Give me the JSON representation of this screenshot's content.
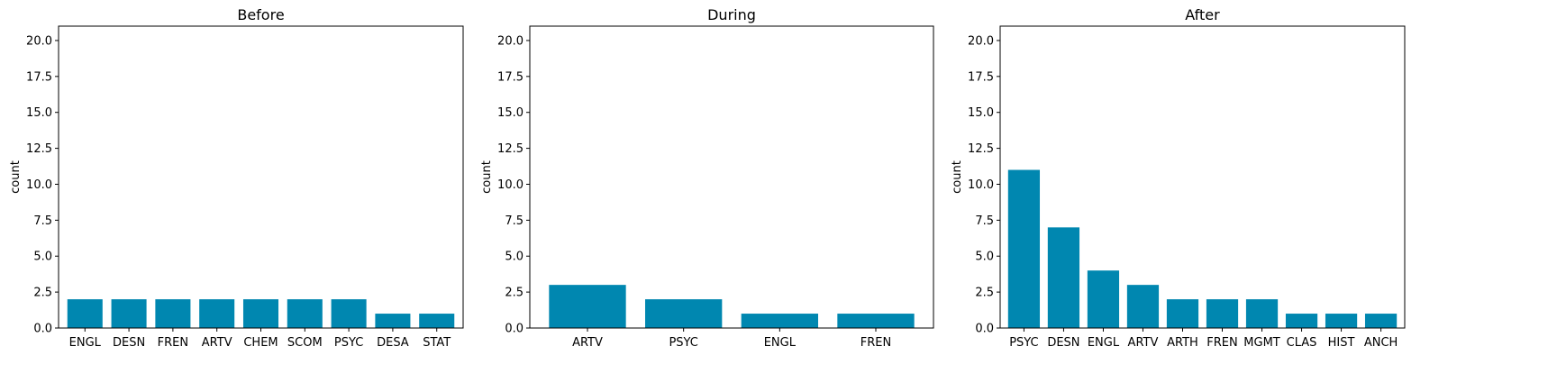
{
  "chart_data": [
    {
      "type": "bar",
      "title": "Before",
      "xlabel": "",
      "ylabel": "count",
      "ylim": [
        0,
        21
      ],
      "yticks": [
        "0.0",
        "2.5",
        "5.0",
        "7.5",
        "10.0",
        "12.5",
        "15.0",
        "17.5",
        "20.0"
      ],
      "categories": [
        "ENGL",
        "DESN",
        "FREN",
        "ARTV",
        "CHEM",
        "SCOM",
        "PSYC",
        "DESA",
        "STAT"
      ],
      "values": [
        2,
        2,
        2,
        2,
        2,
        2,
        2,
        1,
        1
      ],
      "color": "#0087b0",
      "grid": false
    },
    {
      "type": "bar",
      "title": "During",
      "xlabel": "",
      "ylabel": "count",
      "ylim": [
        0,
        21
      ],
      "yticks": [
        "0.0",
        "2.5",
        "5.0",
        "7.5",
        "10.0",
        "12.5",
        "15.0",
        "17.5",
        "20.0"
      ],
      "categories": [
        "ARTV",
        "PSYC",
        "ENGL",
        "FREN"
      ],
      "values": [
        3,
        2,
        1,
        1
      ],
      "color": "#0087b0",
      "grid": false
    },
    {
      "type": "bar",
      "title": "After",
      "xlabel": "",
      "ylabel": "count",
      "ylim": [
        0,
        21
      ],
      "yticks": [
        "0.0",
        "2.5",
        "5.0",
        "7.5",
        "10.0",
        "12.5",
        "15.0",
        "17.5",
        "20.0"
      ],
      "categories": [
        "PSYC",
        "DESN",
        "ENGL",
        "ARTV",
        "ARTH",
        "FREN",
        "MGMT",
        "CLAS",
        "HIST",
        "ANCH"
      ],
      "values": [
        11,
        7,
        4,
        3,
        2,
        2,
        2,
        1,
        1,
        1
      ],
      "color": "#0087b0",
      "grid": false
    }
  ]
}
